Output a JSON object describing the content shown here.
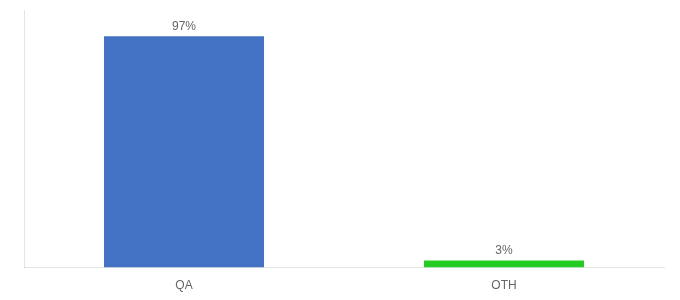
{
  "chart_data": {
    "type": "bar",
    "categories": [
      "QA",
      "OTH"
    ],
    "values": [
      97,
      3
    ],
    "value_labels": [
      "97%",
      "3%"
    ],
    "data_labels": true,
    "colors": [
      "#4472c4",
      "#22cc22"
    ],
    "ylim": [
      0,
      108
    ],
    "yticks": [],
    "tick_labels": "x",
    "grid": false
  }
}
